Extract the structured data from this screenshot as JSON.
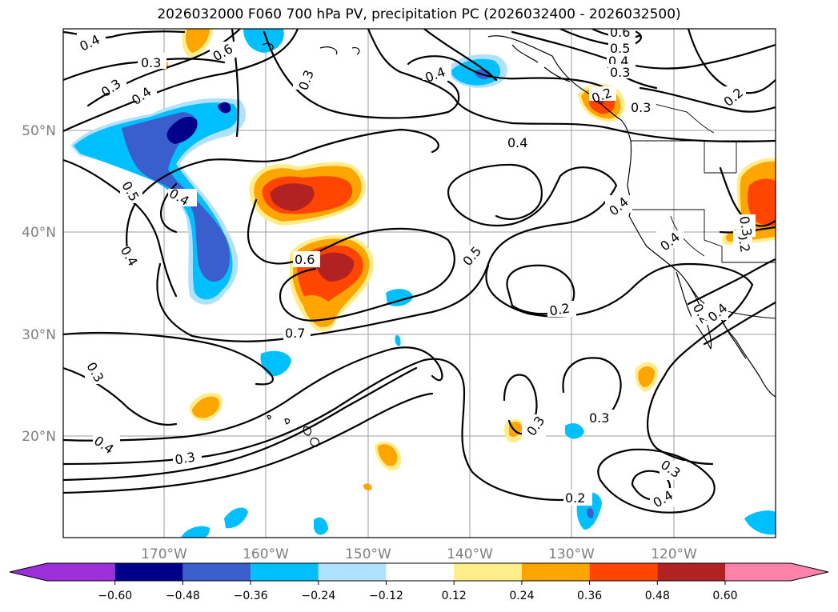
{
  "title": "2026032000 F060 700 hPa PV, precipitation PC (2026032400 - 2026032500)",
  "map": {
    "region": "North Pacific",
    "lon_labels": [
      "170°W",
      "160°W",
      "150°W",
      "140°W",
      "130°W",
      "120°W"
    ],
    "lat_labels": [
      "50°N",
      "40°N",
      "30°N",
      "20°N"
    ]
  },
  "contour_labels": [
    "0.4",
    "0.3",
    "0.6",
    "0.3",
    "0.4",
    "0.3",
    "0.4",
    "0.6",
    "0.5",
    "0.4",
    "0.3",
    "0.2",
    "0.3",
    "0.2",
    "0.4",
    "0.5",
    "0.4",
    "0.4",
    "0.4",
    "0.6",
    "0.7",
    "0.5",
    "0.2",
    "0.4",
    "0.2",
    "0.3",
    "0.3",
    "0.3",
    "0.4",
    "0.3",
    "0.3",
    "0.2",
    "0.4",
    "0.2",
    "0.4",
    "0.3"
  ],
  "colorbar": {
    "ticks": [
      "−0.60",
      "−0.48",
      "−0.36",
      "−0.24",
      "−0.12",
      "0.12",
      "0.24",
      "0.36",
      "0.48",
      "0.60"
    ],
    "colors": [
      "#9b30d9",
      "#00008b",
      "#3a5fcd",
      "#00bfff",
      "#b0e2ff",
      "#ffffff",
      "#ffec8b",
      "#ffa500",
      "#ff4500",
      "#b22222",
      "#ff82ab"
    ]
  }
}
